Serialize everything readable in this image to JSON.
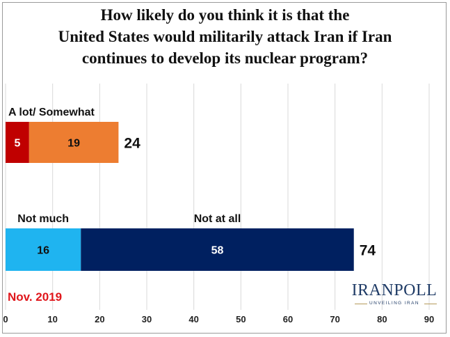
{
  "title_lines": [
    "How likely do you think it is that the",
    "United States would militarily attack Iran if Iran",
    "continues to develop its nuclear program?"
  ],
  "date": "Nov. 2019",
  "logo": {
    "name": "IRANPOLL",
    "tagline": "UNVEILING IRAN"
  },
  "chart_data": {
    "type": "bar",
    "orientation": "horizontal",
    "stacked": true,
    "xlim": [
      0,
      90
    ],
    "x_ticks": [
      0,
      10,
      20,
      30,
      40,
      50,
      60,
      70,
      80,
      90
    ],
    "grid": true,
    "rows": [
      {
        "group_label": "A lot/ Somewhat",
        "total": 24,
        "segments": [
          {
            "label": "",
            "value": 5,
            "color": "#c00000"
          },
          {
            "label": "",
            "value": 19,
            "color": "#ed7d31"
          }
        ]
      },
      {
        "group_label": "",
        "total": 74,
        "segments": [
          {
            "label": "Not much",
            "value": 16,
            "color": "#1fb4f0"
          },
          {
            "label": "Not at all",
            "value": 58,
            "color": "#002060"
          }
        ]
      }
    ]
  }
}
